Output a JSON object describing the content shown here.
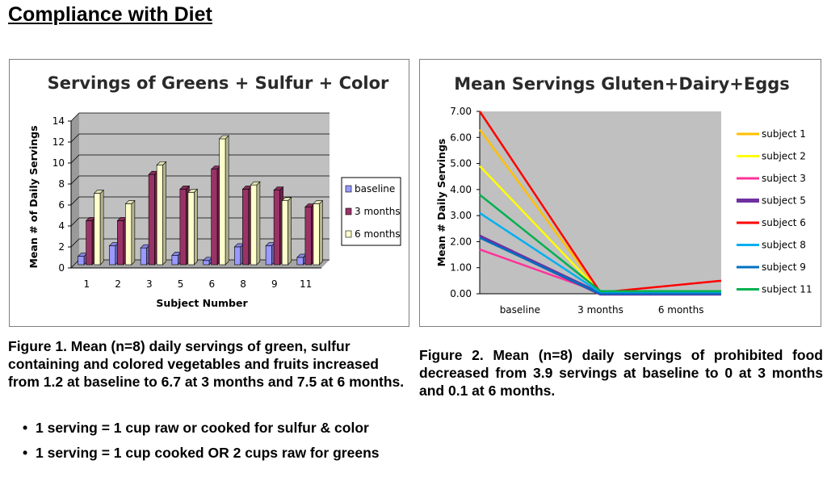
{
  "page": {
    "title": "Compliance with Diet",
    "caption1": "Figure 1. Mean (n=8) daily servings  of green, sulfur containing and colored vegetables and fruits increased from 1.2 at baseline to 6.7 at 3 months and 7.5 at 6 months.",
    "bullets": [
      "1 serving = 1 cup raw or cooked for sulfur & color",
      "1 serving = 1 cup cooked OR 2 cups raw for greens"
    ],
    "caption2": "Figure 2.  Mean (n=8) daily servings  of prohibited food decreased from 3.9 servings at baseline to 0 at 3 months and 0.1 at 6 months."
  },
  "chart_data": [
    {
      "type": "bar",
      "title": "Servings of Greens + Sulfur + Color",
      "xlabel": "Subject Number",
      "ylabel": "Mean # of Daily Servings",
      "categories": [
        "1",
        "2",
        "3",
        "5",
        "6",
        "8",
        "9",
        "11"
      ],
      "ylim": [
        0,
        14
      ],
      "yticks": [
        "0",
        "2",
        "4",
        "6",
        "8",
        "10",
        "12",
        "14"
      ],
      "grid": true,
      "legend": "right",
      "series": [
        {
          "name": "baseline",
          "color": "#9999ff",
          "values": [
            0.8,
            1.8,
            1.6,
            0.9,
            0.4,
            1.7,
            1.8,
            0.7
          ]
        },
        {
          "name": "3 months",
          "color": "#993366",
          "values": [
            4.2,
            4.2,
            8.6,
            7.2,
            9.1,
            7.2,
            7.1,
            5.5
          ]
        },
        {
          "name": "6 months",
          "color": "#ffffcc",
          "values": [
            6.8,
            5.8,
            9.5,
            6.9,
            12.0,
            7.6,
            6.1,
            5.8
          ]
        }
      ]
    },
    {
      "type": "line",
      "title": "Mean Servings Gluten+Dairy+Eggs",
      "xlabel": "",
      "ylabel": "Mean # Daily Servings",
      "categories": [
        "baseline",
        "3 months",
        "6 months"
      ],
      "ylim": [
        0,
        7
      ],
      "yticks": [
        "0.00",
        "1.00",
        "2.00",
        "3.00",
        "4.00",
        "5.00",
        "6.00",
        "7.00"
      ],
      "grid": false,
      "legend": "right",
      "series": [
        {
          "name": "subject 1",
          "color": "#ffc000",
          "values": [
            6.3,
            0.05,
            0.05
          ]
        },
        {
          "name": "subject 2",
          "color": "#ffff00",
          "values": [
            4.9,
            0.05,
            0.05
          ]
        },
        {
          "name": "subject 3",
          "color": "#ff3399",
          "values": [
            1.7,
            0.05,
            0.05
          ]
        },
        {
          "name": "subject 5",
          "color": "#7030a0",
          "values": [
            2.2,
            0.0,
            0.0
          ]
        },
        {
          "name": "subject 6",
          "color": "#ff0000",
          "values": [
            7.0,
            0.05,
            0.5
          ]
        },
        {
          "name": "subject 8",
          "color": "#00b0f0",
          "values": [
            3.1,
            0.05,
            0.05
          ]
        },
        {
          "name": "subject 9",
          "color": "#0070c0",
          "values": [
            2.15,
            0.0,
            0.0
          ]
        },
        {
          "name": "subject 11",
          "color": "#00b050",
          "values": [
            3.8,
            0.1,
            0.1
          ]
        }
      ]
    }
  ]
}
